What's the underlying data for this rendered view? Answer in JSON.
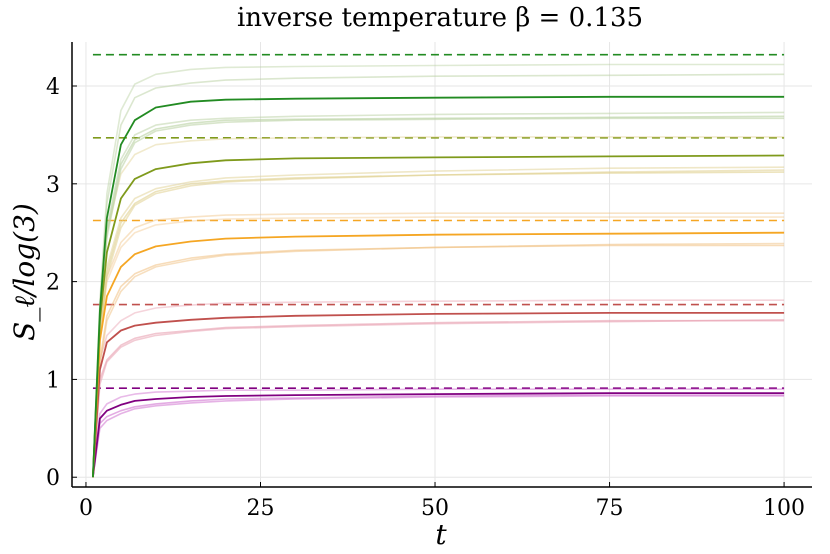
{
  "chart_data": {
    "type": "line",
    "title": "inverse temperature β = 0.135",
    "xlabel": "t",
    "ylabel": "S_ℓ/log(3)",
    "xlim": [
      -2,
      104
    ],
    "ylim": [
      -0.1,
      4.45
    ],
    "xticks": [
      0,
      25,
      50,
      75,
      100
    ],
    "yticks": [
      0,
      1,
      2,
      3,
      4
    ],
    "grid": true,
    "legend": "none",
    "reference_lines": [
      {
        "y": 0.91,
        "color": "#800080",
        "style": "dashed"
      },
      {
        "y": 1.765,
        "color": "#c0504d",
        "style": "dashed"
      },
      {
        "y": 2.625,
        "color": "#f5a623",
        "style": "dashed"
      },
      {
        "y": 3.47,
        "color": "#7f9a1c",
        "style": "dashed"
      },
      {
        "y": 4.32,
        "color": "#228b22",
        "style": "dashed"
      }
    ],
    "series": [
      {
        "color": "#800080",
        "alpha": 1.0,
        "width": 1.8,
        "x": [
          1,
          2,
          3,
          5,
          7,
          10,
          15,
          20,
          30,
          50,
          75,
          100
        ],
        "y": [
          0.0,
          0.6,
          0.68,
          0.74,
          0.78,
          0.8,
          0.82,
          0.83,
          0.84,
          0.85,
          0.86,
          0.86
        ]
      },
      {
        "color": "#cc66cc",
        "alpha": 0.55,
        "x": [
          1,
          2,
          3,
          5,
          7,
          10,
          15,
          20,
          30,
          50,
          75,
          100
        ],
        "y": [
          0.0,
          0.55,
          0.62,
          0.68,
          0.72,
          0.75,
          0.78,
          0.8,
          0.81,
          0.83,
          0.84,
          0.84
        ]
      },
      {
        "color": "#cc66cc",
        "alpha": 0.5,
        "x": [
          1,
          2,
          3,
          5,
          7,
          10,
          15,
          20,
          30,
          50,
          75,
          100
        ],
        "y": [
          0.0,
          0.5,
          0.58,
          0.65,
          0.7,
          0.73,
          0.76,
          0.78,
          0.8,
          0.82,
          0.83,
          0.83
        ]
      },
      {
        "color": "#cc66cc",
        "alpha": 0.45,
        "x": [
          1,
          2,
          3,
          5,
          7,
          10,
          15,
          20,
          30,
          50,
          75,
          100
        ],
        "y": [
          0.0,
          0.65,
          0.75,
          0.82,
          0.85,
          0.87,
          0.88,
          0.89,
          0.89,
          0.9,
          0.9,
          0.9
        ]
      },
      {
        "color": "#c0504d",
        "alpha": 1.0,
        "width": 1.8,
        "x": [
          1,
          2,
          3,
          5,
          7,
          10,
          15,
          20,
          30,
          50,
          75,
          100
        ],
        "y": [
          0.0,
          1.1,
          1.38,
          1.5,
          1.55,
          1.58,
          1.61,
          1.63,
          1.65,
          1.67,
          1.68,
          1.68
        ]
      },
      {
        "color": "#e8a0b0",
        "alpha": 0.6,
        "x": [
          1,
          2,
          3,
          5,
          7,
          10,
          15,
          20,
          30,
          50,
          75,
          100
        ],
        "y": [
          0.0,
          1.0,
          1.2,
          1.35,
          1.42,
          1.47,
          1.5,
          1.53,
          1.55,
          1.58,
          1.6,
          1.6
        ]
      },
      {
        "color": "#e8a0b0",
        "alpha": 0.55,
        "x": [
          1,
          2,
          3,
          5,
          7,
          10,
          15,
          20,
          30,
          50,
          75,
          100
        ],
        "y": [
          0.0,
          0.95,
          1.18,
          1.33,
          1.4,
          1.45,
          1.49,
          1.52,
          1.54,
          1.57,
          1.59,
          1.61
        ]
      },
      {
        "color": "#e8a0b0",
        "alpha": 0.45,
        "x": [
          1,
          2,
          3,
          5,
          7,
          10,
          15,
          20,
          30,
          50,
          75,
          100
        ],
        "y": [
          0.0,
          1.2,
          1.45,
          1.6,
          1.68,
          1.73,
          1.76,
          1.78,
          1.79,
          1.8,
          1.81,
          1.81
        ]
      },
      {
        "color": "#f5a623",
        "alpha": 1.0,
        "width": 1.8,
        "x": [
          1,
          2,
          3,
          5,
          7,
          10,
          15,
          20,
          30,
          50,
          75,
          100
        ],
        "y": [
          0.0,
          1.4,
          1.85,
          2.15,
          2.28,
          2.36,
          2.41,
          2.44,
          2.46,
          2.48,
          2.49,
          2.5
        ]
      },
      {
        "color": "#f0c080",
        "alpha": 0.55,
        "x": [
          1,
          2,
          3,
          5,
          7,
          10,
          15,
          20,
          30,
          50,
          75,
          100
        ],
        "y": [
          0.0,
          1.2,
          1.65,
          1.95,
          2.08,
          2.17,
          2.24,
          2.28,
          2.32,
          2.35,
          2.37,
          2.37
        ]
      },
      {
        "color": "#f0c080",
        "alpha": 0.5,
        "x": [
          1,
          2,
          3,
          5,
          7,
          10,
          15,
          20,
          30,
          50,
          75,
          100
        ],
        "y": [
          0.0,
          1.15,
          1.6,
          1.9,
          2.05,
          2.15,
          2.22,
          2.27,
          2.31,
          2.35,
          2.38,
          2.39
        ]
      },
      {
        "color": "#f0c080",
        "alpha": 0.45,
        "x": [
          1,
          2,
          3,
          5,
          7,
          10,
          15,
          20,
          30,
          50,
          75,
          100
        ],
        "y": [
          0.0,
          1.5,
          2.05,
          2.4,
          2.55,
          2.63,
          2.66,
          2.68,
          2.69,
          2.7,
          2.7,
          2.7
        ]
      },
      {
        "color": "#f0c080",
        "alpha": 0.4,
        "x": [
          1,
          2,
          3,
          5,
          7,
          10,
          15,
          20,
          30,
          50,
          75,
          100
        ],
        "y": [
          0.0,
          1.45,
          2.0,
          2.35,
          2.5,
          2.58,
          2.62,
          2.64,
          2.65,
          2.66,
          2.66,
          2.66
        ]
      },
      {
        "color": "#7f9a1c",
        "alpha": 1.0,
        "width": 1.8,
        "x": [
          1,
          2,
          3,
          5,
          7,
          10,
          15,
          20,
          30,
          50,
          75,
          100
        ],
        "y": [
          0.0,
          1.6,
          2.3,
          2.85,
          3.05,
          3.15,
          3.21,
          3.24,
          3.26,
          3.27,
          3.28,
          3.29
        ]
      },
      {
        "color": "#e0d090",
        "alpha": 0.6,
        "x": [
          1,
          2,
          3,
          5,
          7,
          10,
          15,
          20,
          30,
          50,
          75,
          100
        ],
        "y": [
          0.0,
          1.45,
          2.1,
          2.6,
          2.8,
          2.92,
          3.0,
          3.03,
          3.06,
          3.09,
          3.11,
          3.12
        ]
      },
      {
        "color": "#e0d090",
        "alpha": 0.55,
        "x": [
          1,
          2,
          3,
          5,
          7,
          10,
          15,
          20,
          30,
          50,
          75,
          100
        ],
        "y": [
          0.0,
          1.4,
          2.05,
          2.55,
          2.78,
          2.9,
          2.98,
          3.02,
          3.05,
          3.09,
          3.12,
          3.14
        ]
      },
      {
        "color": "#e0d090",
        "alpha": 0.5,
        "x": [
          1,
          2,
          3,
          5,
          7,
          10,
          15,
          20,
          30,
          50,
          75,
          100
        ],
        "y": [
          0.0,
          1.5,
          2.15,
          2.65,
          2.85,
          2.95,
          3.02,
          3.06,
          3.09,
          3.13,
          3.16,
          3.17
        ]
      },
      {
        "color": "#e0d090",
        "alpha": 0.45,
        "x": [
          1,
          2,
          3,
          5,
          7,
          10,
          15,
          20,
          30,
          50,
          75,
          100
        ],
        "y": [
          0.0,
          1.7,
          2.5,
          3.1,
          3.3,
          3.4,
          3.44,
          3.46,
          3.47,
          3.48,
          3.48,
          3.48
        ]
      },
      {
        "color": "#228b22",
        "alpha": 1.0,
        "width": 1.8,
        "x": [
          1,
          2,
          3,
          5,
          7,
          10,
          15,
          20,
          30,
          50,
          75,
          100
        ],
        "y": [
          0.0,
          1.7,
          2.65,
          3.4,
          3.65,
          3.78,
          3.84,
          3.86,
          3.87,
          3.88,
          3.89,
          3.89
        ]
      },
      {
        "color": "#b8d0a0",
        "alpha": 0.6,
        "x": [
          1,
          2,
          3,
          5,
          7,
          10,
          15,
          20,
          30,
          50,
          75,
          100
        ],
        "y": [
          0.0,
          1.6,
          2.5,
          3.2,
          3.45,
          3.56,
          3.62,
          3.65,
          3.66,
          3.67,
          3.68,
          3.69
        ]
      },
      {
        "color": "#b8d0a0",
        "alpha": 0.55,
        "x": [
          1,
          2,
          3,
          5,
          7,
          10,
          15,
          20,
          30,
          50,
          75,
          100
        ],
        "y": [
          0.0,
          1.55,
          2.45,
          3.15,
          3.42,
          3.54,
          3.6,
          3.63,
          3.65,
          3.66,
          3.67,
          3.67
        ]
      },
      {
        "color": "#b8d0a0",
        "alpha": 0.5,
        "x": [
          1,
          2,
          3,
          5,
          7,
          10,
          15,
          20,
          30,
          50,
          75,
          100
        ],
        "y": [
          0.0,
          1.62,
          2.55,
          3.25,
          3.5,
          3.6,
          3.65,
          3.67,
          3.69,
          3.71,
          3.72,
          3.73
        ]
      },
      {
        "color": "#b8d0a0",
        "alpha": 0.5,
        "x": [
          1,
          2,
          3,
          5,
          7,
          10,
          15,
          20,
          30,
          50,
          75,
          100
        ],
        "y": [
          0.0,
          1.75,
          2.8,
          3.6,
          3.88,
          3.98,
          4.03,
          4.06,
          4.08,
          4.1,
          4.11,
          4.12
        ]
      },
      {
        "color": "#b8d0a0",
        "alpha": 0.45,
        "x": [
          1,
          2,
          3,
          5,
          7,
          10,
          15,
          20,
          30,
          50,
          75,
          100
        ],
        "y": [
          0.0,
          1.8,
          2.9,
          3.75,
          4.02,
          4.12,
          4.17,
          4.19,
          4.2,
          4.21,
          4.22,
          4.22
        ]
      }
    ]
  }
}
